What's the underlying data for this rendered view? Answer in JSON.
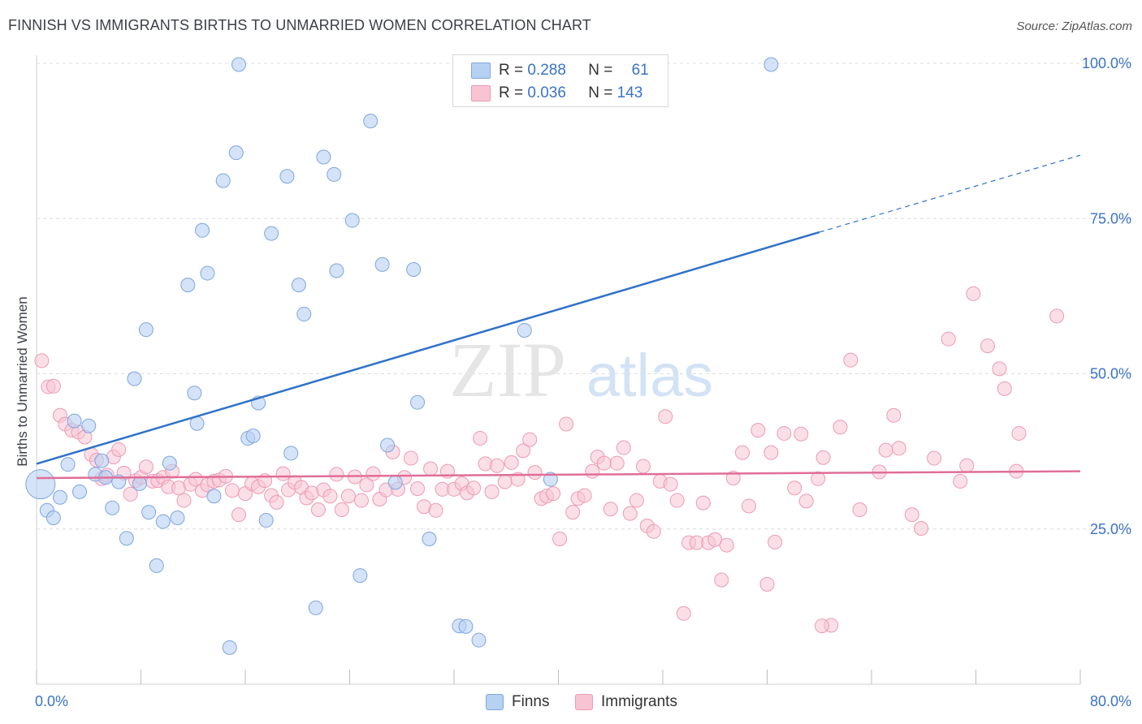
{
  "title": "FINNISH VS IMMIGRANTS BIRTHS TO UNMARRIED WOMEN CORRELATION CHART",
  "source": "Source: ZipAtlas.com",
  "watermark": {
    "zip": "ZIP",
    "atlas": "atlas"
  },
  "colors": {
    "finns_fill": "#b7d1f2",
    "finns_stroke": "#7ea6de",
    "finns_line": "#2f72c9",
    "imm_fill": "#f8c4d3",
    "imm_stroke": "#ec9ab6",
    "imm_line": "#e06e98",
    "grid": "#dcdcdc",
    "tick_label": "#3a73c6"
  },
  "legend_top": {
    "finns": {
      "r_label": "R = ",
      "r_value": "0.288",
      "n_label": "N = ",
      "n_value": "61"
    },
    "immigrants": {
      "r_label": "R = ",
      "r_value": "0.036",
      "n_label": "N = ",
      "n_value": "143"
    }
  },
  "legend_bottom": {
    "finns": "Finns",
    "immigrants": "Immigrants"
  },
  "chart_data": {
    "type": "scatter",
    "title": "FINNISH VS IMMIGRANTS BIRTHS TO UNMARRIED WOMEN CORRELATION CHART",
    "xlabel": "",
    "ylabel": "Births to Unmarried Women",
    "xlim": [
      0,
      80
    ],
    "ylim": [
      0,
      102
    ],
    "x_tick_labels": [
      "0.0%",
      "80.0%"
    ],
    "y_ticks": [
      25,
      50,
      75,
      100
    ],
    "y_tick_labels": [
      "25.0%",
      "50.0%",
      "75.0%",
      "100.0%"
    ],
    "grid": true,
    "legend_position": "top-center",
    "series": [
      {
        "name": "Finns",
        "r": 0.288,
        "n": 61,
        "trend": {
          "x0": 0,
          "y0": 35.5,
          "x1": 60,
          "y1": 72.8,
          "dash_to_x": 80,
          "dash_to_y": 85.2
        },
        "points": [
          [
            0.3,
            32.2,
            "L"
          ],
          [
            0.8,
            28.0
          ],
          [
            1.3,
            26.8
          ],
          [
            1.8,
            30.1
          ],
          [
            2.4,
            35.4
          ],
          [
            2.9,
            42.4
          ],
          [
            3.3,
            31.0
          ],
          [
            4.0,
            41.6
          ],
          [
            4.5,
            33.8
          ],
          [
            5.0,
            36.0
          ],
          [
            5.3,
            33.3
          ],
          [
            5.8,
            28.4
          ],
          [
            6.3,
            32.6
          ],
          [
            6.9,
            23.5
          ],
          [
            7.5,
            49.2
          ],
          [
            7.9,
            32.3
          ],
          [
            8.4,
            57.1
          ],
          [
            8.6,
            27.7
          ],
          [
            9.2,
            19.1
          ],
          [
            9.7,
            26.2
          ],
          [
            10.2,
            35.6
          ],
          [
            10.8,
            26.8
          ],
          [
            11.6,
            64.3
          ],
          [
            12.1,
            46.9
          ],
          [
            12.3,
            42.0
          ],
          [
            12.7,
            73.1
          ],
          [
            13.1,
            66.2
          ],
          [
            13.6,
            30.3
          ],
          [
            14.3,
            81.1
          ],
          [
            14.8,
            5.9
          ],
          [
            15.3,
            85.6
          ],
          [
            15.5,
            99.8
          ],
          [
            16.2,
            39.6
          ],
          [
            16.6,
            40.0
          ],
          [
            17.0,
            45.3
          ],
          [
            17.6,
            26.4
          ],
          [
            18.0,
            72.6
          ],
          [
            19.2,
            81.8
          ],
          [
            19.5,
            37.2
          ],
          [
            20.1,
            64.3
          ],
          [
            20.5,
            59.6
          ],
          [
            21.4,
            12.3
          ],
          [
            22.0,
            84.9
          ],
          [
            22.8,
            82.1
          ],
          [
            23.0,
            66.6
          ],
          [
            24.2,
            74.7
          ],
          [
            24.8,
            17.5
          ],
          [
            25.6,
            90.7
          ],
          [
            26.5,
            67.6
          ],
          [
            26.9,
            38.5
          ],
          [
            27.5,
            32.5
          ],
          [
            28.9,
            66.8
          ],
          [
            29.2,
            45.4
          ],
          [
            30.1,
            23.4
          ],
          [
            32.4,
            9.4
          ],
          [
            32.9,
            9.3
          ],
          [
            33.9,
            7.1
          ],
          [
            37.0,
            99.8
          ],
          [
            37.4,
            57.0
          ],
          [
            39.4,
            33.0
          ],
          [
            56.3,
            99.8
          ]
        ]
      },
      {
        "name": "Immigrants",
        "r": 0.036,
        "n": 143,
        "trend": {
          "x0": 0,
          "y0": 33.2,
          "x1": 80,
          "y1": 34.3
        },
        "points": [
          [
            0.4,
            52.1
          ],
          [
            0.9,
            47.9
          ],
          [
            1.3,
            48.0
          ],
          [
            1.8,
            43.3
          ],
          [
            2.2,
            41.9
          ],
          [
            2.7,
            40.9
          ],
          [
            3.2,
            40.6
          ],
          [
            3.7,
            39.8
          ],
          [
            4.2,
            37.0
          ],
          [
            4.6,
            36.1
          ],
          [
            5.0,
            33.1
          ],
          [
            5.4,
            33.7
          ],
          [
            5.9,
            36.6
          ],
          [
            6.3,
            37.8
          ],
          [
            6.7,
            34.0
          ],
          [
            7.2,
            30.6
          ],
          [
            7.6,
            32.8
          ],
          [
            8.0,
            33.3
          ],
          [
            8.4,
            35.0
          ],
          [
            8.9,
            32.7
          ],
          [
            9.3,
            32.8
          ],
          [
            9.7,
            33.3
          ],
          [
            10.1,
            31.8
          ],
          [
            10.4,
            34.3
          ],
          [
            10.9,
            31.6
          ],
          [
            11.3,
            29.6
          ],
          [
            11.8,
            32.2
          ],
          [
            12.2,
            33.0
          ],
          [
            12.7,
            31.2
          ],
          [
            13.1,
            32.1
          ],
          [
            13.6,
            32.7
          ],
          [
            14.0,
            32.9
          ],
          [
            14.5,
            33.5
          ],
          [
            15.0,
            31.2
          ],
          [
            15.5,
            27.3
          ],
          [
            16.0,
            30.7
          ],
          [
            16.5,
            32.3
          ],
          [
            17.0,
            31.8
          ],
          [
            17.5,
            32.8
          ],
          [
            18.0,
            30.4
          ],
          [
            18.4,
            29.3
          ],
          [
            18.9,
            33.9
          ],
          [
            19.3,
            31.3
          ],
          [
            19.8,
            32.5
          ],
          [
            20.3,
            31.7
          ],
          [
            20.7,
            30.0
          ],
          [
            21.1,
            30.8
          ],
          [
            21.6,
            28.1
          ],
          [
            22.0,
            31.3
          ],
          [
            22.5,
            30.3
          ],
          [
            23.0,
            33.8
          ],
          [
            23.4,
            28.1
          ],
          [
            23.9,
            30.3
          ],
          [
            24.4,
            33.4
          ],
          [
            24.9,
            29.6
          ],
          [
            25.3,
            32.1
          ],
          [
            25.8,
            33.9
          ],
          [
            26.3,
            29.8
          ],
          [
            26.8,
            31.3
          ],
          [
            27.3,
            37.4
          ],
          [
            27.7,
            31.4
          ],
          [
            28.2,
            33.3
          ],
          [
            28.7,
            36.4
          ],
          [
            29.2,
            31.5
          ],
          [
            29.7,
            28.6
          ],
          [
            30.2,
            34.7
          ],
          [
            30.6,
            28.0
          ],
          [
            31.1,
            31.4
          ],
          [
            31.5,
            34.3
          ],
          [
            32.0,
            31.4
          ],
          [
            32.6,
            32.3
          ],
          [
            33.0,
            30.8
          ],
          [
            33.5,
            31.6
          ],
          [
            34.0,
            39.6
          ],
          [
            34.4,
            35.5
          ],
          [
            34.9,
            31.0
          ],
          [
            35.3,
            35.2
          ],
          [
            35.9,
            32.6
          ],
          [
            36.4,
            35.7
          ],
          [
            36.9,
            33.0
          ],
          [
            37.3,
            37.6
          ],
          [
            37.8,
            39.4
          ],
          [
            38.2,
            34.1
          ],
          [
            38.7,
            29.9
          ],
          [
            39.1,
            30.3
          ],
          [
            39.6,
            30.7
          ],
          [
            40.1,
            23.4
          ],
          [
            40.6,
            41.9
          ],
          [
            41.1,
            27.7
          ],
          [
            41.5,
            29.9
          ],
          [
            42.0,
            30.4
          ],
          [
            42.6,
            34.3
          ],
          [
            43.0,
            36.6
          ],
          [
            43.5,
            35.6
          ],
          [
            44.0,
            28.2
          ],
          [
            44.5,
            35.6
          ],
          [
            45.0,
            38.1
          ],
          [
            45.5,
            27.5
          ],
          [
            46.0,
            29.6
          ],
          [
            46.5,
            35.1
          ],
          [
            46.8,
            25.5
          ],
          [
            47.3,
            24.6
          ],
          [
            47.8,
            32.7
          ],
          [
            48.2,
            43.1
          ],
          [
            48.6,
            32.2
          ],
          [
            49.1,
            29.6
          ],
          [
            49.6,
            11.4
          ],
          [
            50.0,
            22.8
          ],
          [
            50.6,
            22.8
          ],
          [
            51.1,
            29.2
          ],
          [
            51.5,
            22.8
          ],
          [
            52.0,
            23.3
          ],
          [
            52.5,
            16.8
          ],
          [
            52.9,
            22.4
          ],
          [
            53.4,
            33.2
          ],
          [
            54.1,
            37.3
          ],
          [
            54.6,
            28.7
          ],
          [
            55.3,
            40.9
          ],
          [
            56.0,
            16.1
          ],
          [
            56.3,
            37.3
          ],
          [
            56.6,
            22.9
          ],
          [
            57.3,
            40.4
          ],
          [
            58.1,
            31.6
          ],
          [
            58.6,
            40.3
          ],
          [
            59.0,
            29.5
          ],
          [
            59.9,
            33.1
          ],
          [
            60.3,
            36.5
          ],
          [
            60.9,
            9.5
          ],
          [
            61.6,
            41.4
          ],
          [
            62.4,
            52.2
          ],
          [
            63.1,
            28.1
          ],
          [
            64.6,
            34.2
          ],
          [
            65.1,
            37.7
          ],
          [
            65.7,
            43.3
          ],
          [
            66.1,
            38.0
          ],
          [
            67.1,
            27.3
          ],
          [
            67.8,
            25.1
          ],
          [
            68.8,
            36.4
          ],
          [
            69.9,
            55.6
          ],
          [
            70.8,
            32.7
          ],
          [
            71.3,
            35.2
          ],
          [
            71.8,
            62.9
          ],
          [
            72.9,
            54.5
          ],
          [
            73.8,
            50.8
          ],
          [
            74.2,
            47.6
          ],
          [
            75.1,
            34.3
          ],
          [
            75.3,
            40.4
          ],
          [
            78.2,
            59.3
          ],
          [
            60.2,
            9.4
          ]
        ]
      }
    ]
  }
}
